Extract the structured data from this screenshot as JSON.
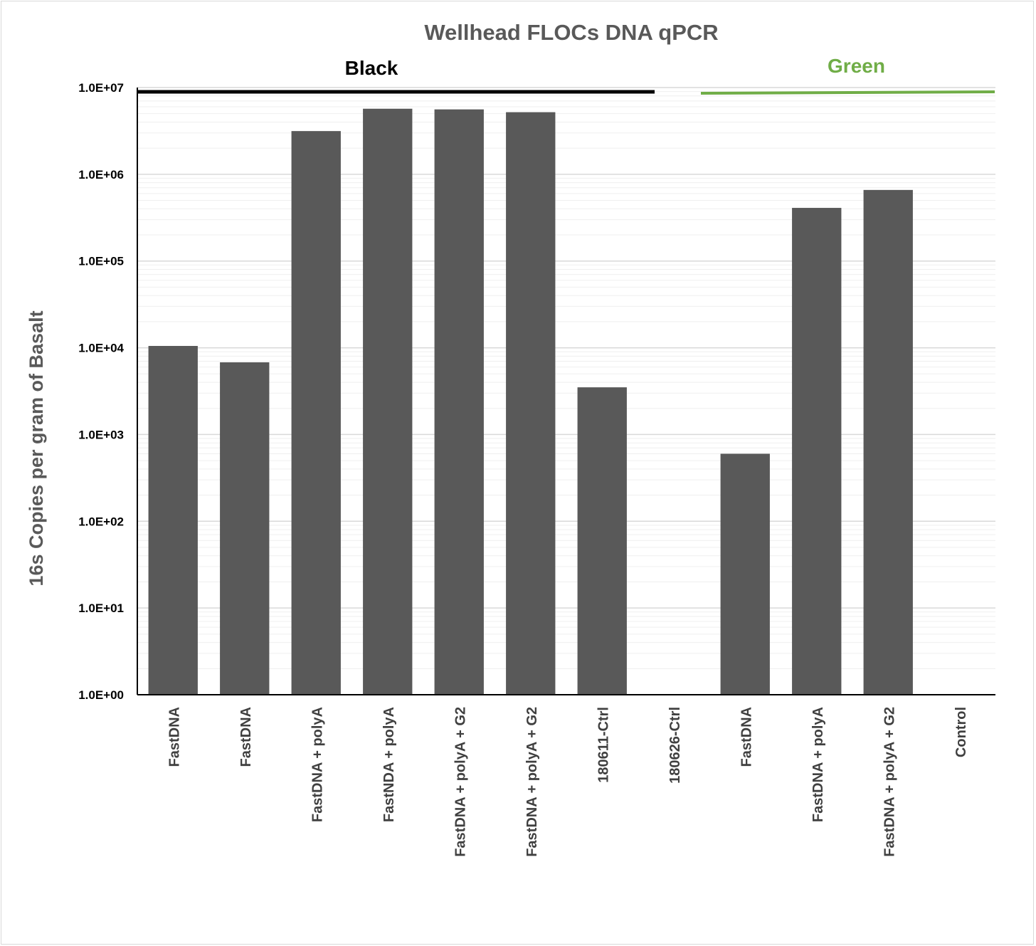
{
  "chart_data": {
    "type": "bar",
    "title": "Wellhead FLOCs DNA qPCR",
    "ylabel": "16s Copies per gram of Basalt",
    "xlabel": "",
    "yscale": "log",
    "ylim": [
      1,
      10000000
    ],
    "grid": true,
    "yticks": [
      "1.0E+00",
      "1.0E+01",
      "1.0E+02",
      "1.0E+03",
      "1.0E+04",
      "1.0E+05",
      "1.0E+06",
      "1.0E+07"
    ],
    "categories": [
      "FastDNA",
      "FastDNA",
      "FastDNA + polyA",
      "FastNDA + polyA",
      "FastDNA + polyA + G2",
      "FastDNA + polyA + G2",
      "180611-Ctrl",
      "180626-Ctrl",
      "FastDNA",
      "FastDNA + polyA",
      "FastDNA + polyA + G2",
      "Control"
    ],
    "values": [
      10500,
      6800,
      3150000,
      5700000,
      5600000,
      5200000,
      3500,
      null,
      600,
      410000,
      660000,
      null
    ],
    "bar_color": "#595959",
    "groups": [
      {
        "label": "Black",
        "color": "#000000",
        "start_index": 0,
        "end_index": 7
      },
      {
        "label": "Green",
        "color": "#70ad47",
        "start_index": 8,
        "end_index": 11
      }
    ]
  }
}
